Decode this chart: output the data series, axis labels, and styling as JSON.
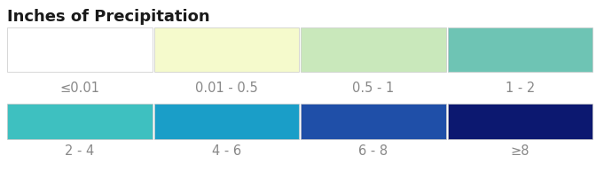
{
  "title": "Inches of Precipitation",
  "title_fontsize": 13,
  "title_fontweight": "bold",
  "title_color": "#1a1a1a",
  "row1_colors": [
    "#ffffff",
    "#f5facc",
    "#c9e8bb",
    "#6ec4b4"
  ],
  "row1_labels": [
    "≤0.01",
    "0.01 - 0.5",
    "0.5 - 1",
    "1 - 2"
  ],
  "row2_colors": [
    "#3ec0c0",
    "#1a9ec8",
    "#1f4fa8",
    "#0c1870"
  ],
  "row2_labels": [
    "2 - 4",
    "4 - 6",
    "6 - 8",
    "≥8"
  ],
  "label_color": "#888888",
  "label_fontsize": 10.5,
  "background_color": "#ffffff",
  "box_edge_color": "#c8c8c8"
}
